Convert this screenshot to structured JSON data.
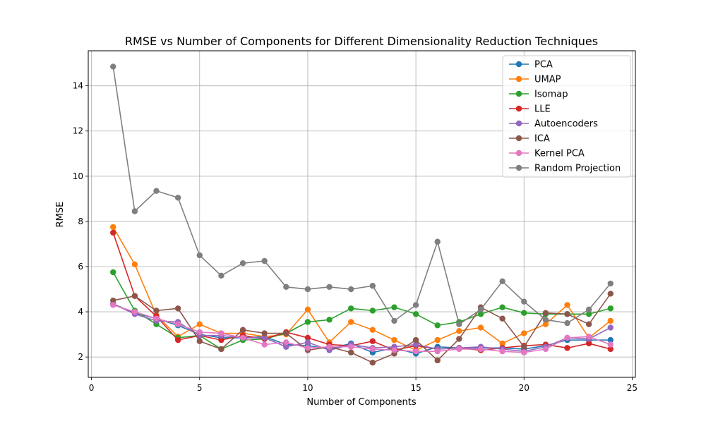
{
  "chart_data": {
    "type": "line",
    "title": "RMSE vs Number of Components for Different Dimensionality Reduction Techniques",
    "xlabel": "Number of Components",
    "ylabel": "RMSE",
    "xlim": [
      -0.15,
      25.15
    ],
    "ylim": [
      1.1,
      15.55
    ],
    "xticks": [
      0,
      5,
      10,
      15,
      20,
      25
    ],
    "yticks": [
      2,
      4,
      6,
      8,
      10,
      12,
      14
    ],
    "grid": true,
    "legend_position": "top-right",
    "x": [
      1,
      2,
      3,
      4,
      5,
      6,
      7,
      8,
      9,
      10,
      11,
      12,
      13,
      14,
      15,
      16,
      17,
      18,
      19,
      20,
      21,
      22,
      23,
      24
    ],
    "series": [
      {
        "name": "PCA",
        "color": "#1f77b4",
        "values": [
          4.35,
          3.95,
          3.7,
          3.4,
          3.0,
          2.85,
          2.85,
          2.9,
          2.55,
          2.5,
          2.35,
          2.6,
          2.2,
          2.4,
          2.15,
          2.45,
          2.4,
          2.4,
          2.4,
          2.35,
          2.5,
          2.75,
          2.75,
          2.75
        ]
      },
      {
        "name": "UMAP",
        "color": "#ff7f0e",
        "values": [
          7.75,
          6.1,
          3.85,
          2.9,
          3.45,
          3.05,
          3.05,
          2.9,
          3.0,
          4.1,
          2.65,
          3.55,
          3.2,
          2.75,
          2.3,
          2.75,
          3.15,
          3.3,
          2.6,
          3.05,
          3.45,
          4.3,
          2.85,
          3.6
        ]
      },
      {
        "name": "Isomap",
        "color": "#2ca02c",
        "values": [
          5.75,
          4.05,
          3.45,
          2.85,
          2.95,
          2.35,
          2.75,
          2.8,
          3.05,
          3.55,
          3.65,
          4.15,
          4.05,
          4.2,
          3.9,
          3.4,
          3.55,
          3.9,
          4.2,
          3.95,
          3.9,
          3.9,
          3.9,
          4.15
        ]
      },
      {
        "name": "LLE",
        "color": "#d62728",
        "values": [
          7.5,
          4.7,
          3.8,
          2.75,
          2.95,
          2.75,
          2.95,
          2.8,
          3.1,
          2.85,
          2.55,
          2.5,
          2.7,
          2.3,
          2.5,
          2.35,
          2.4,
          2.3,
          2.4,
          2.5,
          2.55,
          2.4,
          2.6,
          2.35
        ]
      },
      {
        "name": "Autoencoders",
        "color": "#9467bd",
        "values": [
          4.35,
          3.9,
          3.6,
          3.55,
          2.95,
          2.95,
          2.85,
          2.85,
          2.45,
          2.65,
          2.3,
          2.55,
          2.4,
          2.45,
          2.55,
          2.35,
          2.4,
          2.45,
          2.35,
          2.25,
          2.45,
          2.85,
          2.8,
          3.3
        ]
      },
      {
        "name": "ICA",
        "color": "#8c564b",
        "values": [
          4.5,
          4.7,
          4.05,
          4.15,
          2.7,
          2.35,
          3.2,
          3.05,
          3.05,
          2.3,
          2.45,
          2.2,
          1.75,
          2.15,
          2.75,
          1.85,
          2.8,
          4.2,
          3.7,
          2.45,
          3.95,
          3.9,
          3.45,
          4.8
        ]
      },
      {
        "name": "Kernel PCA",
        "color": "#e377c2",
        "values": [
          4.3,
          4.0,
          3.7,
          3.45,
          3.1,
          3.05,
          2.85,
          2.55,
          2.65,
          2.4,
          2.45,
          2.45,
          2.35,
          2.3,
          2.25,
          2.25,
          2.35,
          2.35,
          2.25,
          2.2,
          2.35,
          2.85,
          2.9,
          2.55
        ]
      },
      {
        "name": "Random Projection",
        "color": "#7f7f7f",
        "values": [
          14.85,
          8.45,
          9.35,
          9.05,
          6.5,
          5.6,
          6.15,
          6.25,
          5.1,
          5.0,
          5.1,
          5.0,
          5.15,
          3.6,
          4.3,
          7.1,
          3.45,
          4.1,
          5.35,
          4.45,
          3.65,
          3.5,
          4.1,
          5.25
        ]
      }
    ]
  }
}
